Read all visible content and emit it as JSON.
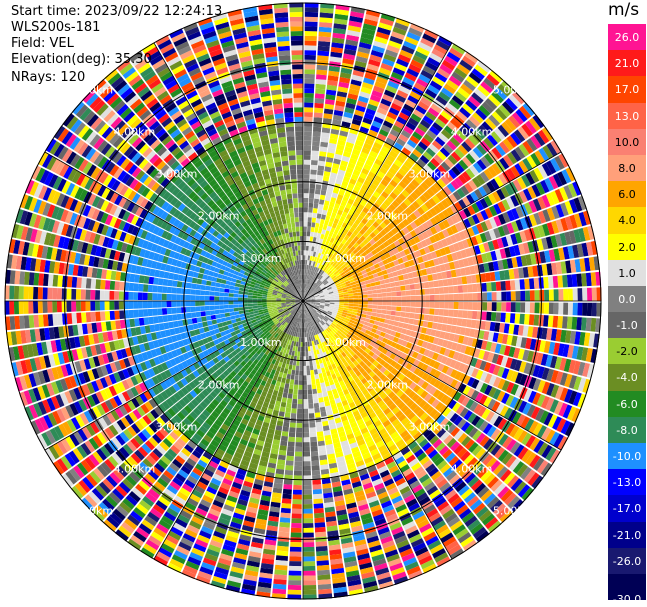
{
  "header": {
    "start_time": "Start time: 2023/09/22 12:24:13",
    "instrument": "WLS200s-181",
    "field": "Field: VEL",
    "elevation": "Elevation(deg): 35.30",
    "nrays": "NRays: 120"
  },
  "colorbar": {
    "unit": "m/s",
    "labels": [
      "26.0",
      "21.0",
      "17.0",
      "13.0",
      "10.0",
      "8.0",
      "6.0",
      "4.0",
      "2.0",
      "1.0",
      "0.0",
      "-1.0",
      "-2.0",
      "-4.0",
      "-6.0",
      "-8.0",
      "-10.0",
      "-13.0",
      "-17.0",
      "-21.0",
      "-26.0",
      "-30.0"
    ],
    "colors": [
      "#ff1493",
      "#ff1a1a",
      "#ff4500",
      "#ff6347",
      "#fa8072",
      "#ffa07a",
      "#ffa500",
      "#ffd700",
      "#ffff00",
      "#e0e0e0",
      "#808080",
      "#666666",
      "#9acd32",
      "#6b8e23",
      "#228b22",
      "#2e8b57",
      "#1e90ff",
      "#0000ff",
      "#0000cd",
      "#00008b",
      "#191970",
      "#000055"
    ]
  },
  "chart_data": {
    "type": "heatmap",
    "subtype": "ppi_polar",
    "field": "VEL",
    "nrays": 120,
    "range_ring_labels": [
      "1.00km",
      "2.00km",
      "3.00km",
      "4.00km",
      "5.00km"
    ],
    "range_rings_km": [
      1,
      2,
      3,
      4,
      5
    ],
    "valid_range_km": 3.0,
    "pattern": "toward/away radial velocity; green (negative) west half, yellow/orange (positive) east half; noisy multicolor beyond ~3 km"
  }
}
